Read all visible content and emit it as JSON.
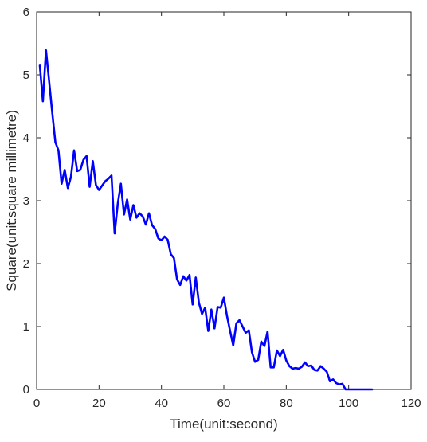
{
  "chart_data": {
    "type": "line",
    "title": "",
    "xlabel": "Time(unit:second)",
    "ylabel": "Square(unit:square millimetre)",
    "xlim": [
      0,
      120
    ],
    "ylim": [
      0,
      6
    ],
    "xticks": [
      0,
      20,
      40,
      60,
      80,
      100,
      120
    ],
    "yticks": [
      0,
      1,
      2,
      3,
      4,
      5,
      6
    ],
    "xtick_labels": [
      "0",
      "20",
      "40",
      "60",
      "80",
      "100",
      "120"
    ],
    "ytick_labels": [
      "0",
      "1",
      "2",
      "3",
      "4",
      "5",
      "6"
    ],
    "grid": false,
    "legend": "none",
    "series": [
      {
        "color": "#0000FF",
        "points": [
          [
            1,
            5.16
          ],
          [
            2,
            4.58
          ],
          [
            3,
            5.39
          ],
          [
            4,
            4.9
          ],
          [
            5,
            4.4
          ],
          [
            6,
            3.93
          ],
          [
            7,
            3.8
          ],
          [
            8,
            3.27
          ],
          [
            9,
            3.49
          ],
          [
            10,
            3.2
          ],
          [
            11,
            3.38
          ],
          [
            12,
            3.8
          ],
          [
            13,
            3.47
          ],
          [
            14,
            3.49
          ],
          [
            15,
            3.65
          ],
          [
            16,
            3.71
          ],
          [
            17,
            3.22
          ],
          [
            18,
            3.63
          ],
          [
            19,
            3.25
          ],
          [
            20,
            3.17
          ],
          [
            21,
            3.24
          ],
          [
            22,
            3.31
          ],
          [
            23,
            3.35
          ],
          [
            24,
            3.4
          ],
          [
            25,
            2.48
          ],
          [
            26,
            2.95
          ],
          [
            27,
            3.27
          ],
          [
            28,
            2.78
          ],
          [
            29,
            3.02
          ],
          [
            30,
            2.7
          ],
          [
            31,
            2.93
          ],
          [
            32,
            2.73
          ],
          [
            33,
            2.8
          ],
          [
            34,
            2.75
          ],
          [
            35,
            2.62
          ],
          [
            36,
            2.8
          ],
          [
            37,
            2.61
          ],
          [
            38,
            2.55
          ],
          [
            39,
            2.4
          ],
          [
            40,
            2.37
          ],
          [
            41,
            2.43
          ],
          [
            42,
            2.38
          ],
          [
            43,
            2.15
          ],
          [
            44,
            2.09
          ],
          [
            45,
            1.75
          ],
          [
            46,
            1.66
          ],
          [
            47,
            1.8
          ],
          [
            48,
            1.73
          ],
          [
            49,
            1.82
          ],
          [
            50,
            1.35
          ],
          [
            51,
            1.78
          ],
          [
            52,
            1.38
          ],
          [
            53,
            1.2
          ],
          [
            54,
            1.3
          ],
          [
            55,
            0.93
          ],
          [
            56,
            1.27
          ],
          [
            57,
            0.97
          ],
          [
            58,
            1.31
          ],
          [
            59,
            1.3
          ],
          [
            60,
            1.46
          ],
          [
            61,
            1.17
          ],
          [
            62,
            0.93
          ],
          [
            63,
            0.7
          ],
          [
            64,
            1.05
          ],
          [
            65,
            1.1
          ],
          [
            66,
            1.0
          ],
          [
            67,
            0.9
          ],
          [
            68,
            0.94
          ],
          [
            69,
            0.59
          ],
          [
            70,
            0.44
          ],
          [
            71,
            0.47
          ],
          [
            72,
            0.76
          ],
          [
            73,
            0.69
          ],
          [
            74,
            0.92
          ],
          [
            75,
            0.35
          ],
          [
            76,
            0.35
          ],
          [
            77,
            0.62
          ],
          [
            78,
            0.53
          ],
          [
            79,
            0.63
          ],
          [
            80,
            0.46
          ],
          [
            81,
            0.37
          ],
          [
            82,
            0.33
          ],
          [
            83,
            0.34
          ],
          [
            84,
            0.33
          ],
          [
            85,
            0.36
          ],
          [
            86,
            0.43
          ],
          [
            87,
            0.37
          ],
          [
            88,
            0.38
          ],
          [
            89,
            0.31
          ],
          [
            90,
            0.3
          ],
          [
            91,
            0.37
          ],
          [
            92,
            0.33
          ],
          [
            93,
            0.28
          ],
          [
            94,
            0.13
          ],
          [
            95,
            0.16
          ],
          [
            96,
            0.1
          ],
          [
            97,
            0.08
          ],
          [
            98,
            0.09
          ],
          [
            99,
            0.0
          ],
          [
            100,
            0.0
          ],
          [
            102,
            0.0
          ],
          [
            104,
            0.0
          ],
          [
            106,
            0.0
          ],
          [
            107.5,
            0.0
          ]
        ]
      }
    ]
  }
}
